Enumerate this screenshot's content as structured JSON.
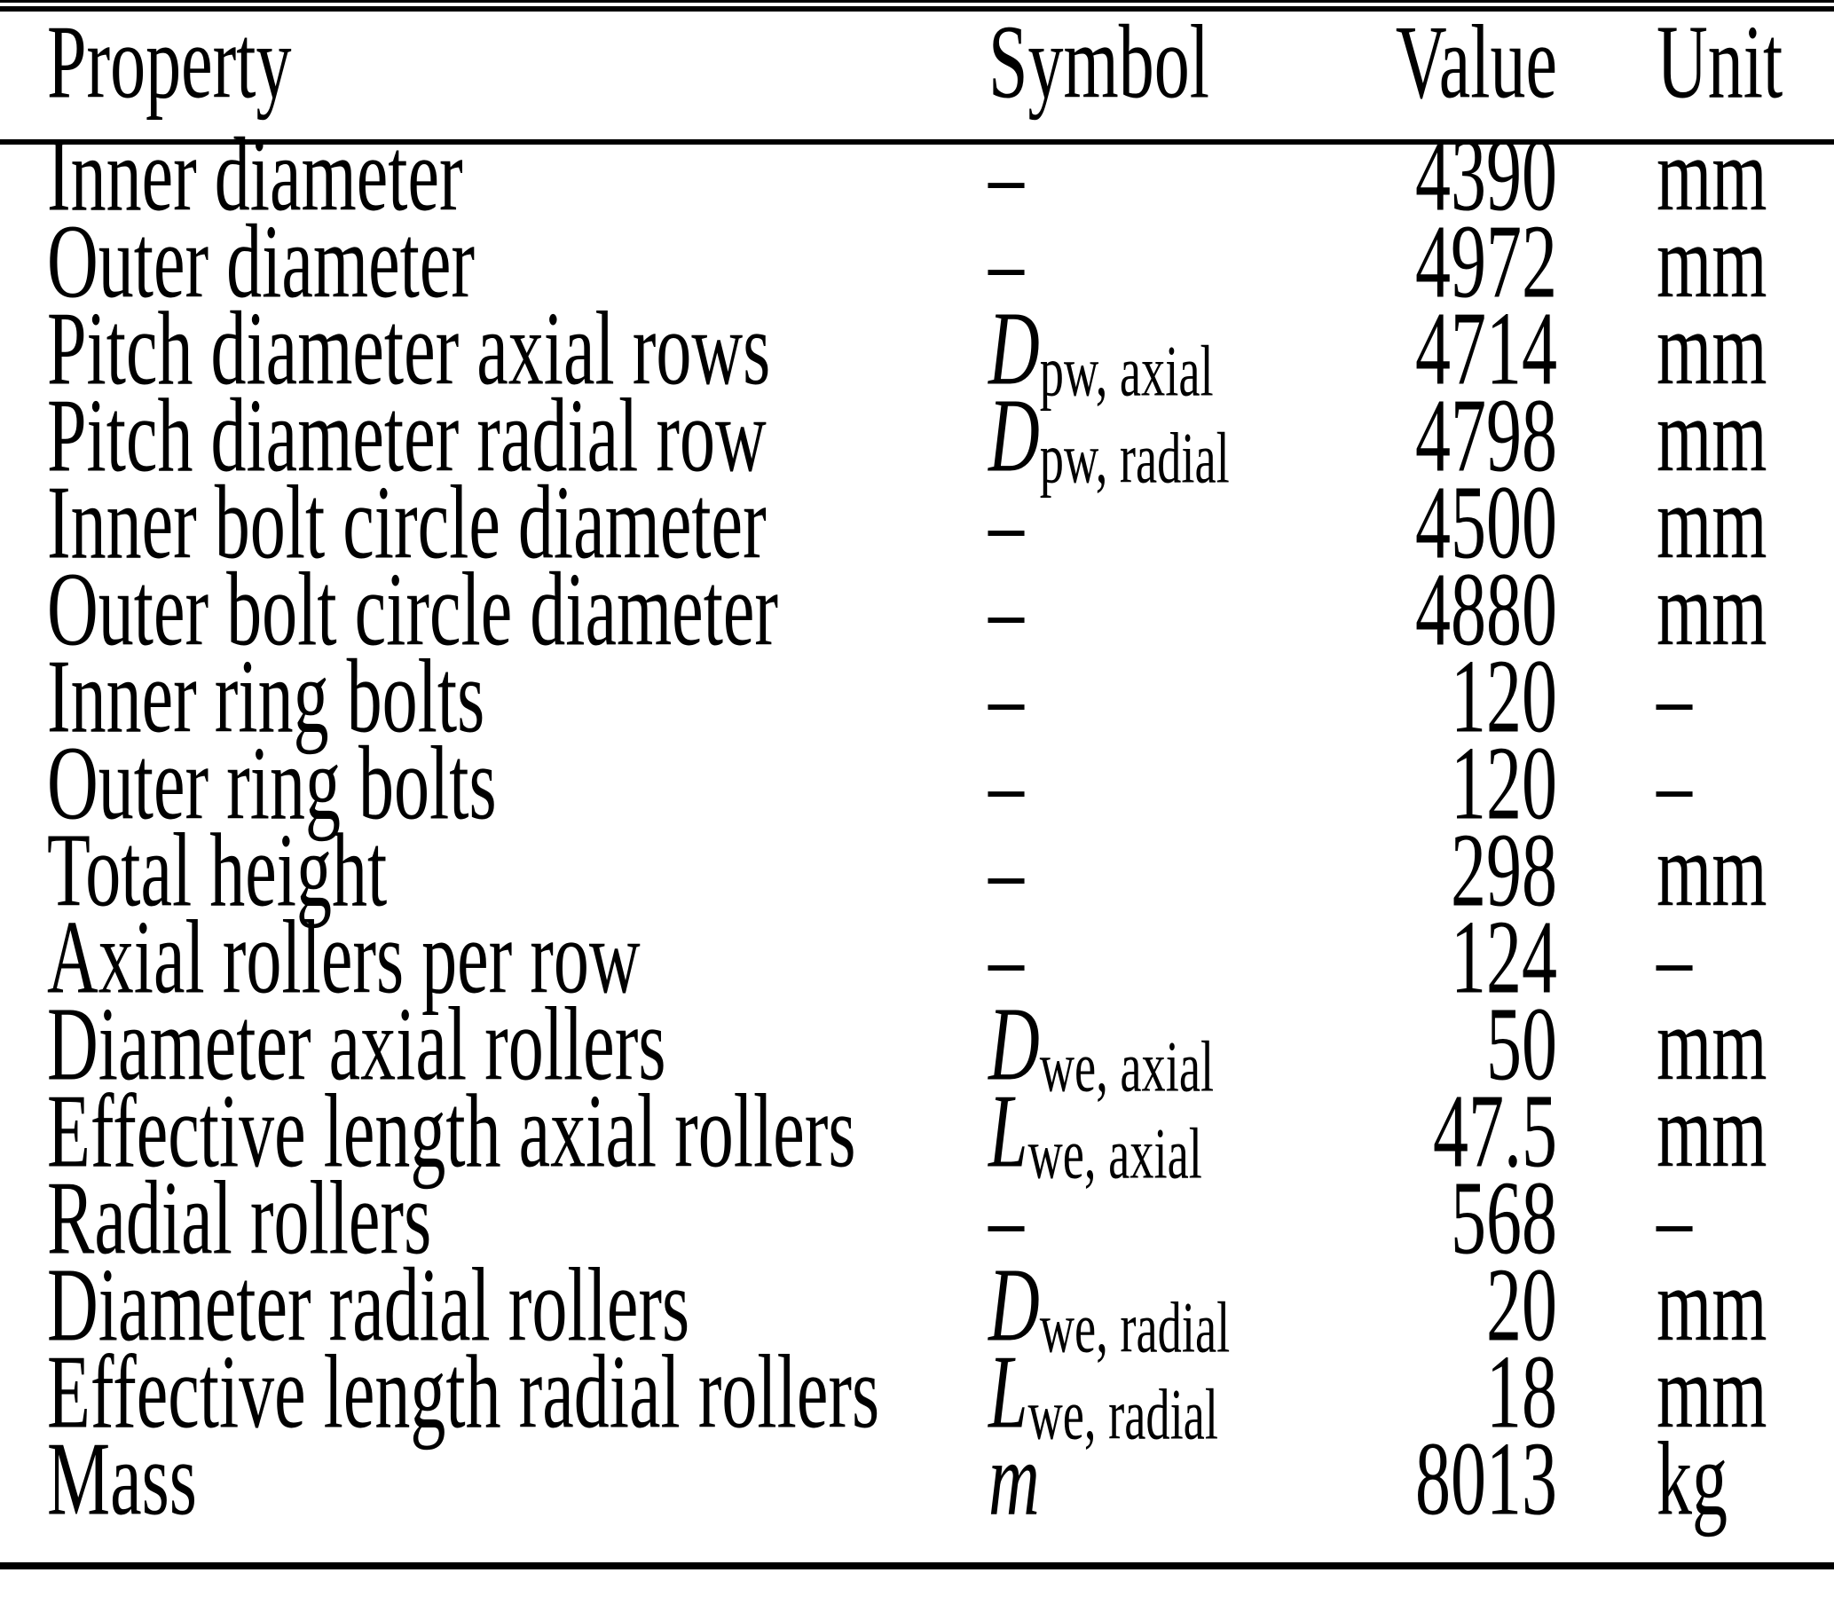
{
  "colors": {
    "ink": "#000000",
    "background": "#ffffff"
  },
  "table": {
    "columns": {
      "property": "Property",
      "symbol": "Symbol",
      "value": "Value",
      "unit": "Unit"
    },
    "rows": [
      {
        "property": "Inner diameter",
        "symbol_base": "–",
        "symbol_sub": "",
        "value": "4390",
        "unit": "mm"
      },
      {
        "property": "Outer diameter",
        "symbol_base": "–",
        "symbol_sub": "",
        "value": "4972",
        "unit": "mm"
      },
      {
        "property": "Pitch diameter axial rows",
        "symbol_base": "D",
        "symbol_sub": "pw, axial",
        "value": "4714",
        "unit": "mm"
      },
      {
        "property": "Pitch diameter radial row",
        "symbol_base": "D",
        "symbol_sub": "pw, radial",
        "value": "4798",
        "unit": "mm"
      },
      {
        "property": "Inner bolt circle diameter",
        "symbol_base": "–",
        "symbol_sub": "",
        "value": "4500",
        "unit": "mm"
      },
      {
        "property": "Outer bolt circle diameter",
        "symbol_base": "–",
        "symbol_sub": "",
        "value": "4880",
        "unit": "mm"
      },
      {
        "property": "Inner ring bolts",
        "symbol_base": "–",
        "symbol_sub": "",
        "value": "120",
        "unit": "–"
      },
      {
        "property": "Outer ring bolts",
        "symbol_base": "–",
        "symbol_sub": "",
        "value": "120",
        "unit": "–"
      },
      {
        "property": "Total height",
        "symbol_base": "–",
        "symbol_sub": "",
        "value": "298",
        "unit": "mm"
      },
      {
        "property": "Axial rollers per row",
        "symbol_base": "–",
        "symbol_sub": "",
        "value": "124",
        "unit": "–"
      },
      {
        "property": "Diameter axial rollers",
        "symbol_base": "D",
        "symbol_sub": "we, axial",
        "value": "50",
        "unit": "mm"
      },
      {
        "property": "Effective length axial rollers",
        "symbol_base": "L",
        "symbol_sub": "we, axial",
        "value": "47.5",
        "unit": "mm"
      },
      {
        "property": "Radial rollers",
        "symbol_base": "–",
        "symbol_sub": "",
        "value": "568",
        "unit": "–"
      },
      {
        "property": "Diameter radial rollers",
        "symbol_base": "D",
        "symbol_sub": "we, radial",
        "value": "20",
        "unit": "mm"
      },
      {
        "property": "Effective length radial rollers",
        "symbol_base": "L",
        "symbol_sub": "we, radial",
        "value": "18",
        "unit": "mm"
      },
      {
        "property": "Mass",
        "symbol_base": "m",
        "symbol_sub": "",
        "value": "8013",
        "unit": "kg"
      }
    ]
  }
}
